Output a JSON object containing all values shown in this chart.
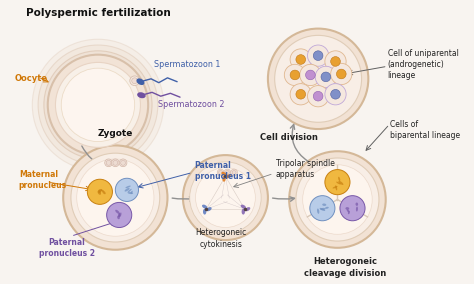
{
  "title": "Polyspermic fertilization",
  "bg_color": "#f8f4f0",
  "labels": {
    "oocyte": "Oocyte",
    "sperm1": "Spermatozoon 1",
    "sperm2": "Spermatozoon 2",
    "zygote": "Zygote",
    "maternal": "Maternal\npronucleus",
    "paternal1": "Paternal\npronucleus 1",
    "paternal2": "Paternal\npronucleus 2",
    "hetero_cyto": "Heterogoneic\ncytokinesis",
    "tripolar": "Tripolar spindle\napparatus",
    "hetero_cleave": "Heterogoneic\ncleavage division",
    "cell_division": "Cell division",
    "uniparental": "Cell of uniparental\n(androgenetic)\nlineage",
    "biparental": "Cells of\nbiparental lineage"
  },
  "colors": {
    "oocyte_outer_fill": "#f0ddd0",
    "oocyte_outer_edge": "#d8bfaa",
    "oocyte_inner_fill": "#f8ede4",
    "oocyte_inner_edge": "#e0c8b4",
    "oocyte_center_fill": "#fdf5f0",
    "oocyte_center_edge": "#e8d4c4",
    "zygote_fill": "#f8ede4",
    "zygote_edge": "#d8c0a8",
    "zygote_inner_fill": "#fdf5ee",
    "zygote_inner_edge": "#e8d4be",
    "maternal_fill": "#f0b840",
    "maternal_edge": "#c88010",
    "paternal1_fill": "#b8cce8",
    "paternal1_edge": "#7090c0",
    "paternal2_fill": "#b8a0d8",
    "paternal2_edge": "#7858a8",
    "spindle_cell_fill": "#f8ede4",
    "spindle_cell_edge": "#d8c0a8",
    "spindle_orange": "#e07818",
    "spindle_blue": "#5878c0",
    "spindle_purple": "#8060b0",
    "cleave_fill": "#f8ede4",
    "cleave_edge": "#d8c0a8",
    "div_fill": "#f5ece6",
    "div_edge": "#d8bfaa",
    "small_cell_fill": "#f5e8df",
    "small_cell_edge": "#d8c0b0",
    "sperm1_color": "#4060a8",
    "sperm2_color": "#7050a0",
    "oocyte_label": "#d07808",
    "maternal_label": "#d07808",
    "paternal1_label": "#4060a8",
    "paternal2_label": "#7050a0",
    "sperm1_label": "#4060a8",
    "sperm2_label": "#7050a0",
    "arrow_color": "#909090",
    "title_color": "#111111",
    "text_color": "#222222",
    "divline_color": "#d8c8b8"
  }
}
